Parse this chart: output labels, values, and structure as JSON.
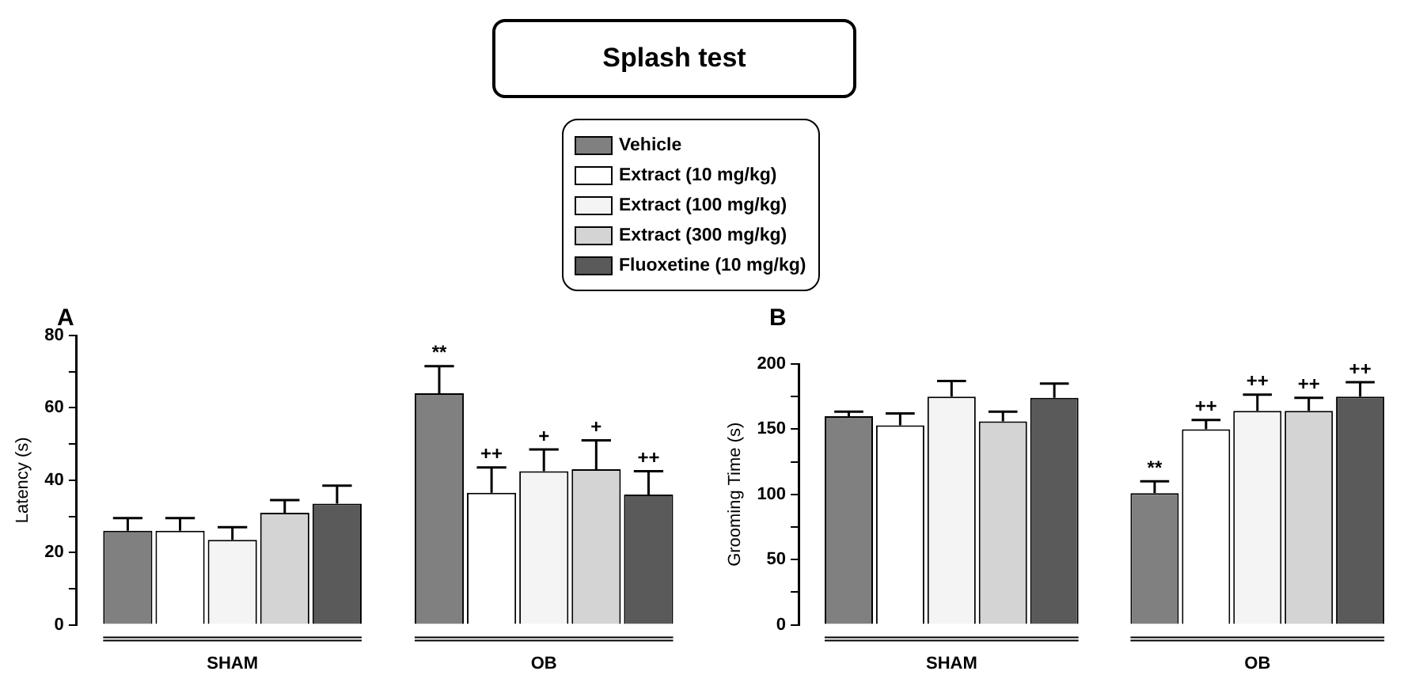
{
  "chart_data": [
    {
      "type": "bar",
      "title": "Splash test",
      "ylabel": "Latency (s)",
      "categories": [
        "SHAM",
        "OB"
      ],
      "legend": "top",
      "grid": false,
      "ylim": [
        0,
        80
      ],
      "yticks": [
        0,
        {
          "value": 10,
          "label": null
        },
        20,
        {
          "value": 30,
          "label": null
        },
        40,
        {
          "value": 50,
          "label": null
        },
        60,
        {
          "value": 70,
          "label": null
        },
        80
      ],
      "series": [
        {
          "name": "Vehicle",
          "color": "#808080",
          "values": [
            26,
            64
          ],
          "errors": [
            [
              26,
              29.5
            ],
            [
              64,
              71.5
            ]
          ],
          "value_labels": [
            null,
            "**"
          ]
        },
        {
          "name": "Extract (10 mg/kg)",
          "color": "#ffffff",
          "values": [
            26,
            36.5
          ],
          "errors": [
            [
              26,
              29.5
            ],
            [
              36.5,
              43.5
            ]
          ],
          "value_labels": [
            null,
            "++"
          ]
        },
        {
          "name": "Extract (100 mg/kg)",
          "color": "#f4f4f4",
          "values": [
            23.5,
            42.5
          ],
          "errors": [
            [
              23.5,
              27
            ],
            [
              42.5,
              48.5
            ]
          ],
          "value_labels": [
            null,
            "+"
          ]
        },
        {
          "name": "Extract (300 mg/kg)",
          "color": "#d4d4d4",
          "values": [
            31,
            43
          ],
          "errors": [
            [
              31,
              34.5
            ],
            [
              43,
              51
            ]
          ],
          "value_labels": [
            null,
            "+"
          ]
        },
        {
          "name": "Fluoxetine (10 mg/kg)",
          "color": "#5a5a5a",
          "values": [
            33.5,
            36
          ],
          "errors": [
            [
              33.5,
              38.5
            ],
            [
              36,
              42.5
            ]
          ],
          "value_labels": [
            null,
            "++"
          ]
        }
      ],
      "annotations": [
        "A"
      ]
    },
    {
      "type": "bar",
      "ylabel": "Grooming Time (s)",
      "categories": [
        "SHAM",
        "OB"
      ],
      "grid": false,
      "ylim": [
        0,
        200
      ],
      "yticks": [
        0,
        {
          "value": 25,
          "label": null
        },
        50,
        {
          "value": 75,
          "label": null
        },
        100,
        {
          "value": 125,
          "label": null
        },
        150,
        {
          "value": 175,
          "label": null
        },
        200
      ],
      "series": [
        {
          "color": "#808080",
          "values": [
            160,
            101
          ],
          "errors": [
            [
              160,
              163.5
            ],
            [
              101,
              110
            ]
          ],
          "value_labels": [
            null,
            "**"
          ]
        },
        {
          "color": "#ffffff",
          "values": [
            153,
            150
          ],
          "errors": [
            [
              153,
              162
            ],
            [
              150,
              157
            ]
          ],
          "value_labels": [
            null,
            "++"
          ]
        },
        {
          "color": "#f4f4f4",
          "values": [
            175,
            164
          ],
          "errors": [
            [
              175,
              187
            ],
            [
              164,
              176.5
            ]
          ],
          "value_labels": [
            null,
            "++"
          ]
        },
        {
          "color": "#d4d4d4",
          "values": [
            156,
            164
          ],
          "errors": [
            [
              156,
              163.5
            ],
            [
              164,
              174
            ]
          ],
          "value_labels": [
            null,
            "++"
          ]
        },
        {
          "color": "#5a5a5a",
          "values": [
            174,
            175
          ],
          "errors": [
            [
              174,
              185
            ],
            [
              175,
              186
            ]
          ],
          "value_labels": [
            null,
            "++"
          ]
        }
      ],
      "annotations": [
        "B"
      ]
    }
  ]
}
